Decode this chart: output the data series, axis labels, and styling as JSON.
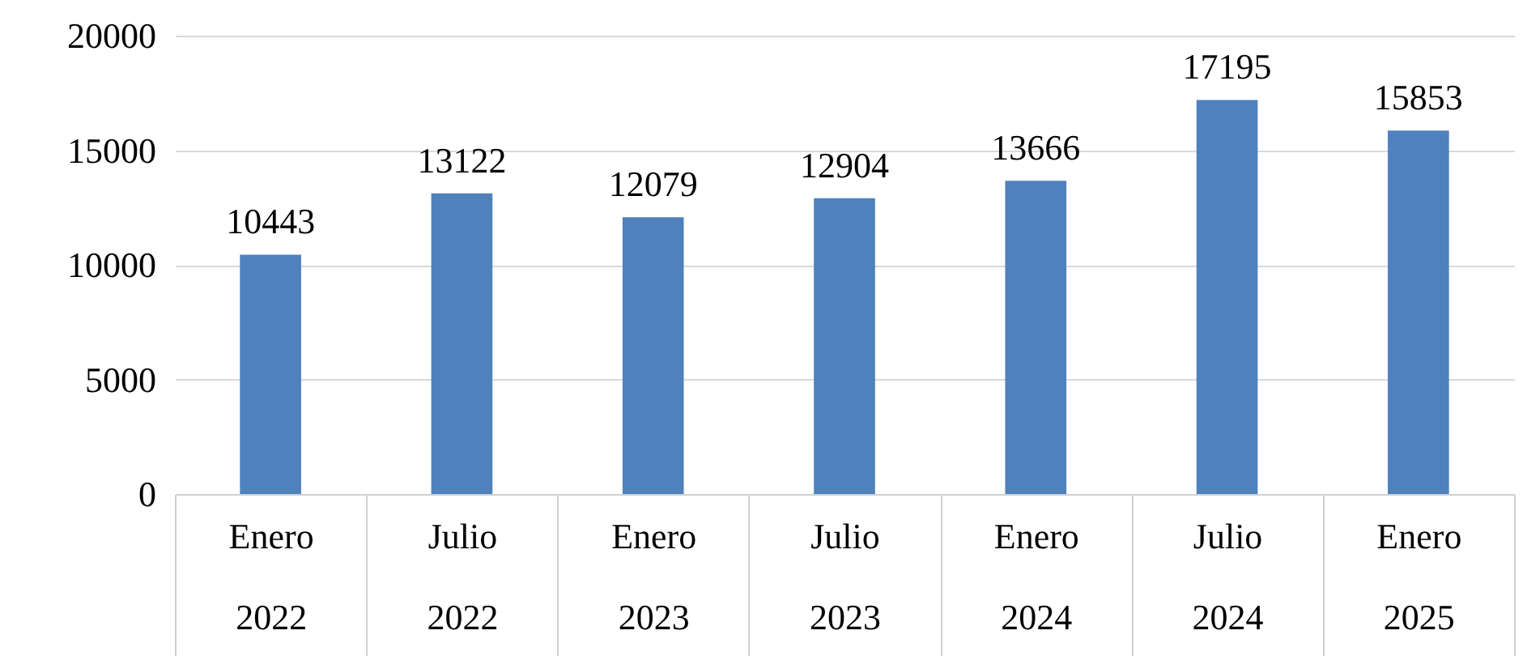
{
  "chart_data": {
    "type": "bar",
    "categories": [
      "Enero 2022",
      "Julio 2022",
      "Enero 2023",
      "Julio 2023",
      "Enero 2024",
      "Julio 2024",
      "Enero 2025"
    ],
    "values": [
      10443,
      13122,
      12079,
      12904,
      13666,
      17195,
      15853
    ],
    "color": "#4f81bd",
    "ylim": [
      0,
      20000
    ],
    "yticks": [
      0,
      5000,
      10000,
      15000,
      20000
    ],
    "grid": "y",
    "data_labels": true
  }
}
